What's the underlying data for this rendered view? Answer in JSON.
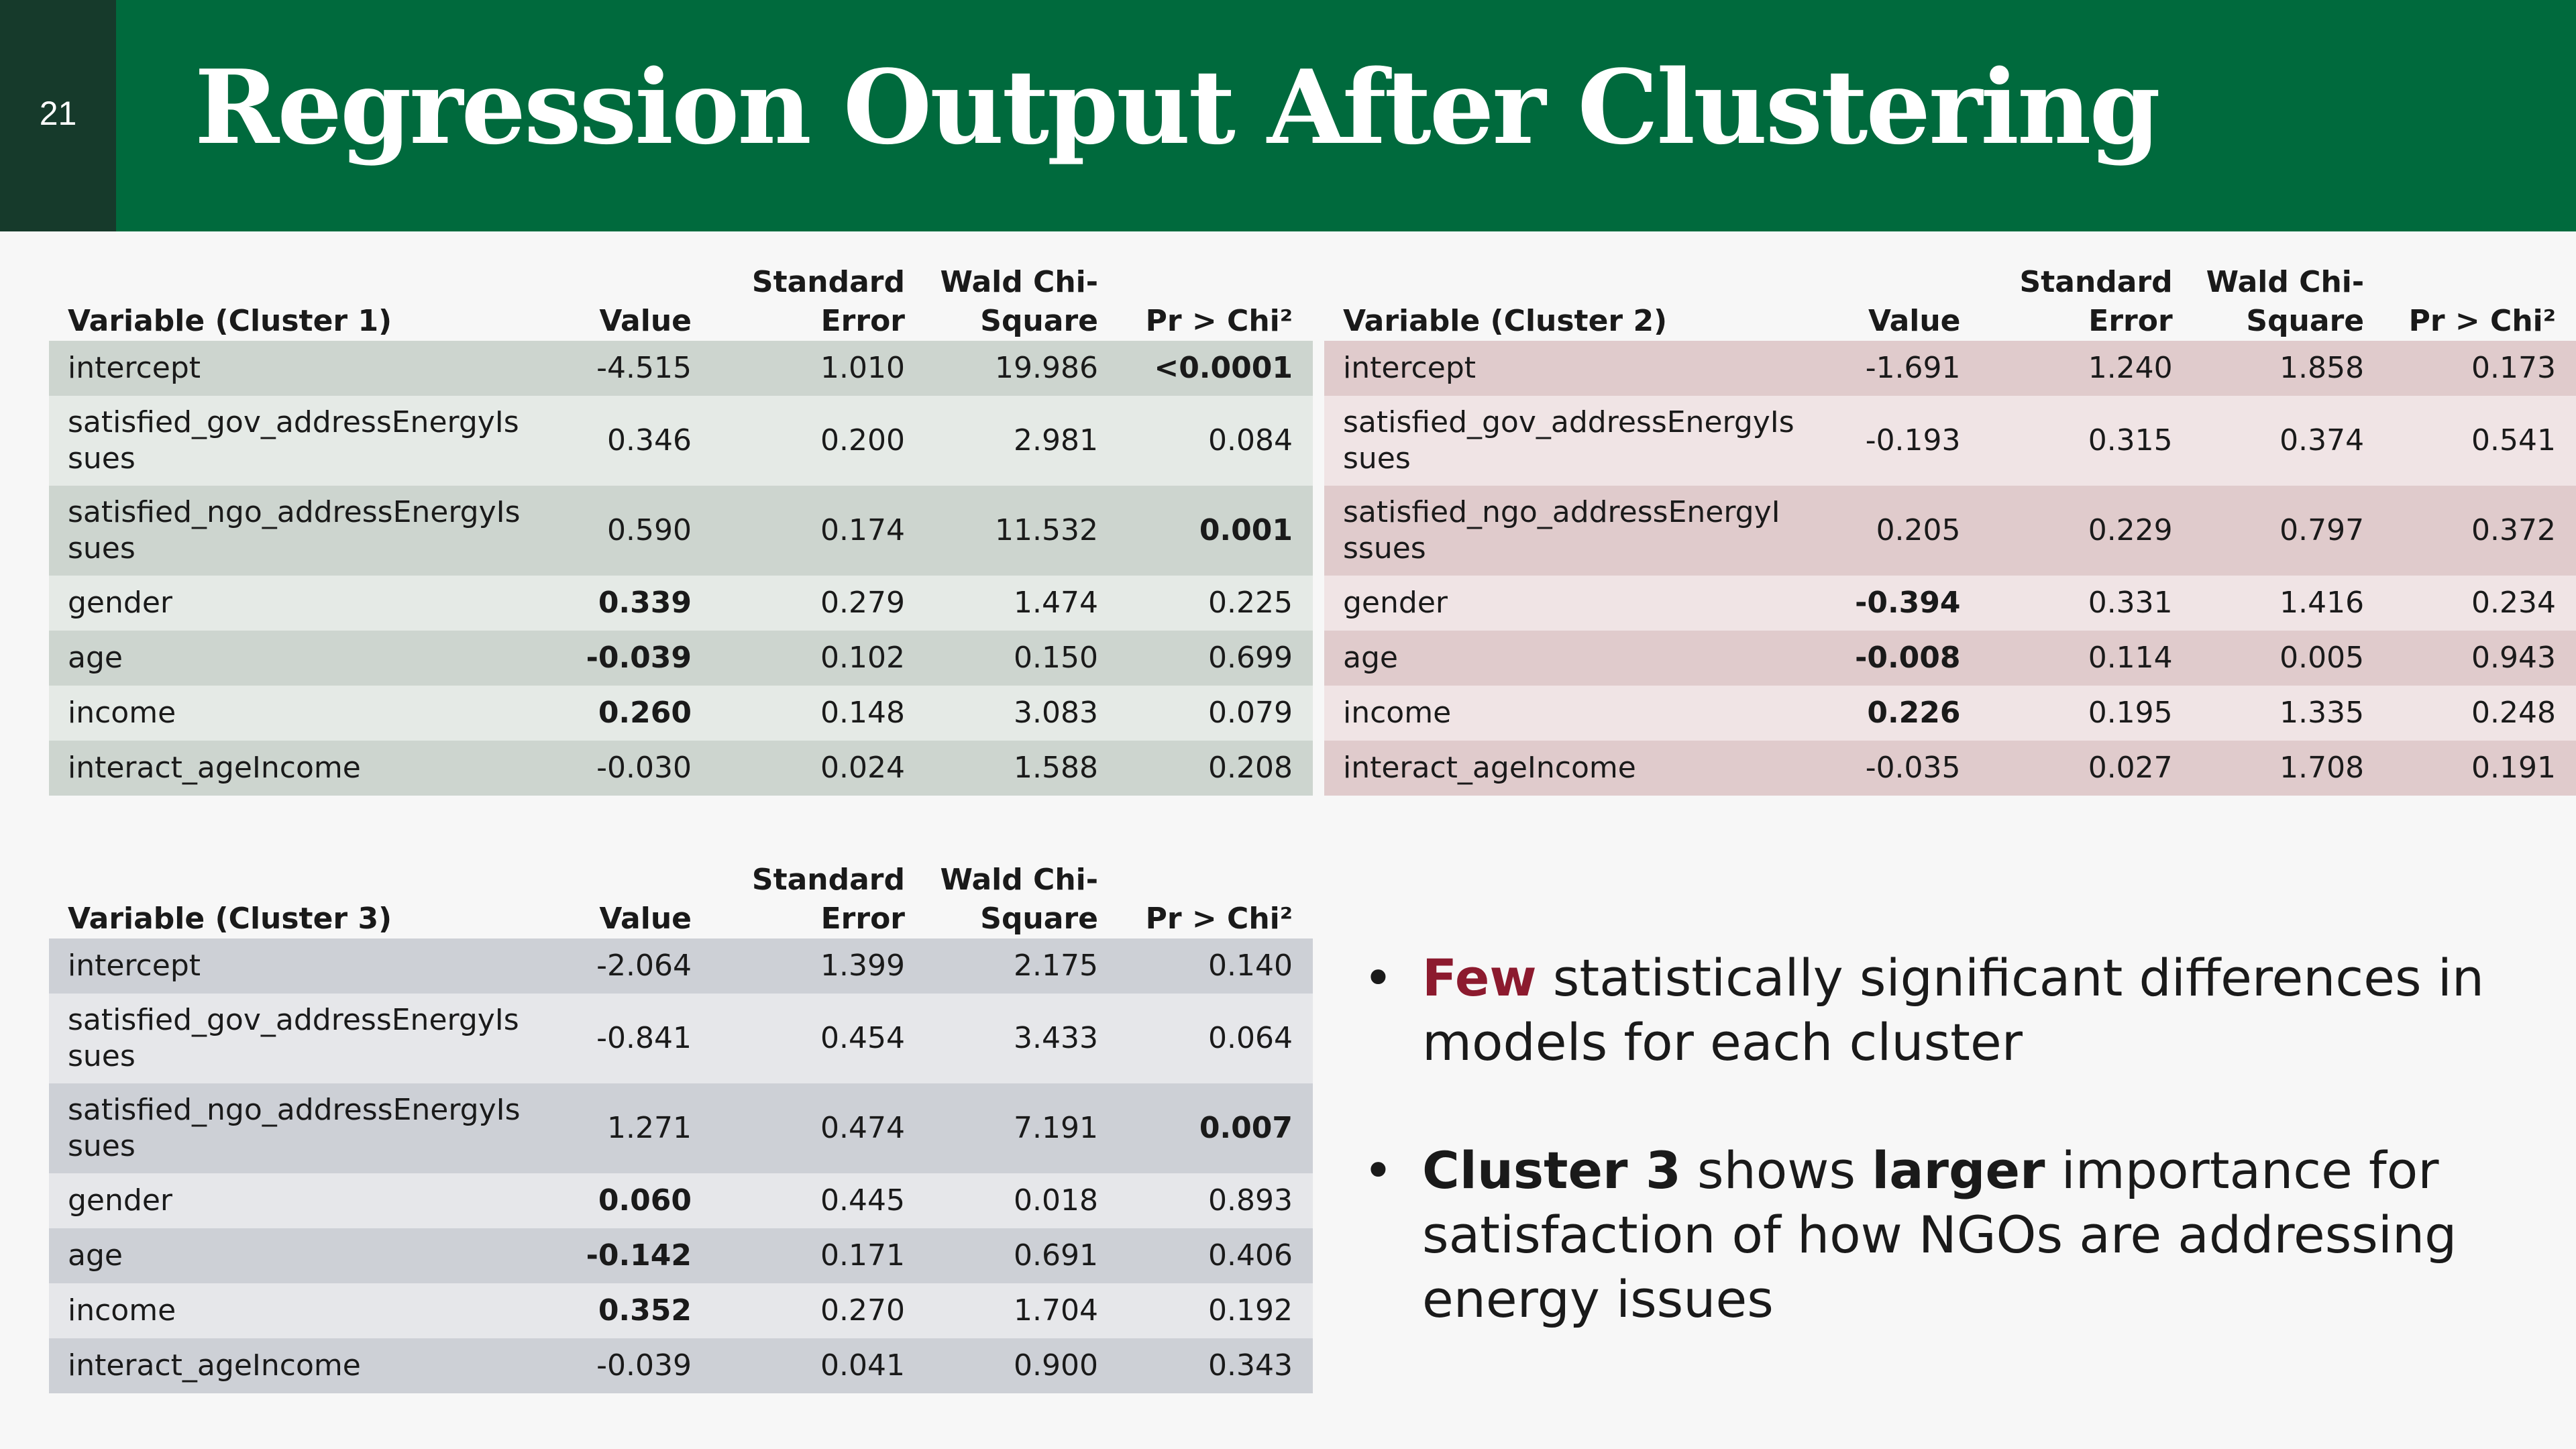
{
  "slide": {
    "number": "21",
    "title": "Regression Output After Clustering"
  },
  "colors": {
    "header_bg": "#006a3d",
    "number_bg": "#163a2b",
    "accent": "#8c1a2e"
  },
  "tables": [
    {
      "headers": [
        "Variable (Cluster 1)",
        "Value",
        "Standard Error",
        "Wald Chi-Square",
        "Pr > Chi²"
      ],
      "rows": [
        {
          "variable": "intercept",
          "value": "-4.515",
          "se": "1.010",
          "wald": "19.986",
          "pr": "<0.0001"
        },
        {
          "variable": "satisfied_gov_addressEnergyIssues",
          "value": "0.346",
          "se": "0.200",
          "wald": "2.981",
          "pr": "0.084"
        },
        {
          "variable": "satisfied_ngo_addressEnergyIssues",
          "value": "0.590",
          "se": "0.174",
          "wald": "11.532",
          "pr": "0.001"
        },
        {
          "variable": "gender",
          "value": "0.339",
          "se": "0.279",
          "wald": "1.474",
          "pr": "0.225"
        },
        {
          "variable": "age",
          "value": "-0.039",
          "se": "0.102",
          "wald": "0.150",
          "pr": "0.699"
        },
        {
          "variable": "income",
          "value": "0.260",
          "se": "0.148",
          "wald": "3.083",
          "pr": "0.079"
        },
        {
          "variable": "interact_ageIncome",
          "value": "-0.030",
          "se": "0.024",
          "wald": "1.588",
          "pr": "0.208"
        }
      ]
    },
    {
      "headers": [
        "Variable (Cluster 2)",
        "Value",
        "Standard Error",
        "Wald Chi-Square",
        "Pr > Chi²"
      ],
      "rows": [
        {
          "variable": "intercept",
          "value": "-1.691",
          "se": "1.240",
          "wald": "1.858",
          "pr": "0.173"
        },
        {
          "variable": "satisfied_gov_addressEnergyIssues",
          "value": "-0.193",
          "se": "0.315",
          "wald": "0.374",
          "pr": "0.541"
        },
        {
          "variable": "satisfied_ngo_addressEnergyIssues",
          "value": "0.205",
          "se": "0.229",
          "wald": "0.797",
          "pr": "0.372"
        },
        {
          "variable": "gender",
          "value": "-0.394",
          "se": "0.331",
          "wald": "1.416",
          "pr": "0.234"
        },
        {
          "variable": "age",
          "value": "-0.008",
          "se": "0.114",
          "wald": "0.005",
          "pr": "0.943"
        },
        {
          "variable": "income",
          "value": "0.226",
          "se": "0.195",
          "wald": "1.335",
          "pr": "0.248"
        },
        {
          "variable": "interact_ageIncome",
          "value": "-0.035",
          "se": "0.027",
          "wald": "1.708",
          "pr": "0.191"
        }
      ]
    },
    {
      "headers": [
        "Variable (Cluster 3)",
        "Value",
        "Standard Error",
        "Wald Chi-Square",
        "Pr > Chi²"
      ],
      "rows": [
        {
          "variable": "intercept",
          "value": "-2.064",
          "se": "1.399",
          "wald": "2.175",
          "pr": "0.140"
        },
        {
          "variable": "satisfied_gov_addressEnergyIssues",
          "value": "-0.841",
          "se": "0.454",
          "wald": "3.433",
          "pr": "0.064"
        },
        {
          "variable": "satisfied_ngo_addressEnergyIssues",
          "value": "1.271",
          "se": "0.474",
          "wald": "7.191",
          "pr": "0.007"
        },
        {
          "variable": "gender",
          "value": "0.060",
          "se": "0.445",
          "wald": "0.018",
          "pr": "0.893"
        },
        {
          "variable": "age",
          "value": "-0.142",
          "se": "0.171",
          "wald": "0.691",
          "pr": "0.406"
        },
        {
          "variable": "income",
          "value": "0.352",
          "se": "0.270",
          "wald": "1.704",
          "pr": "0.192"
        },
        {
          "variable": "interact_ageIncome",
          "value": "-0.039",
          "se": "0.041",
          "wald": "0.900",
          "pr": "0.343"
        }
      ]
    }
  ],
  "bullets": [
    {
      "accent": "Few",
      "text": " statistically significant differences in models for each cluster"
    },
    {
      "strong1": "Cluster 3",
      "mid": " shows ",
      "strong2": "larger",
      "text": " importance for satisfaction of how NGOs are addressing energy issues"
    }
  ]
}
